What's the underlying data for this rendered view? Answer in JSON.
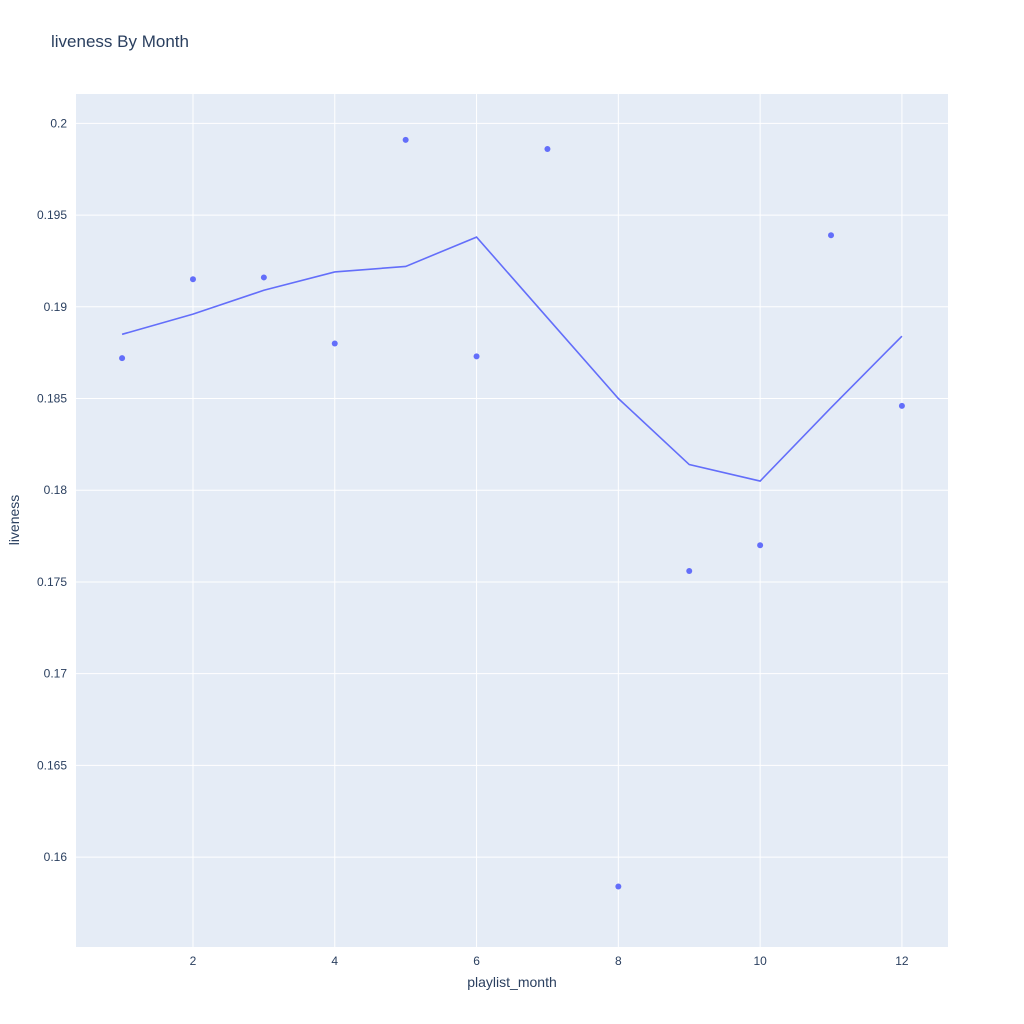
{
  "chart_data": {
    "type": "scatter",
    "title": "liveness By Month",
    "xlabel": "playlist_month",
    "ylabel": "liveness",
    "xlim": [
      0.35,
      12.65
    ],
    "ylim": [
      0.1551,
      0.2016
    ],
    "x_ticks": [
      2,
      4,
      6,
      8,
      10,
      12
    ],
    "y_ticks": [
      0.16,
      0.165,
      0.17,
      0.175,
      0.18,
      0.185,
      0.19,
      0.195,
      0.2
    ],
    "grid": true,
    "colors": {
      "plot_bg": "#e5ecf6",
      "grid": "#ffffff",
      "series": "#636efa",
      "text": "#2a3f5f"
    },
    "series": [
      {
        "mode": "markers",
        "x": [
          1,
          2,
          3,
          4,
          5,
          6,
          7,
          8,
          9,
          10,
          11,
          12
        ],
        "y": [
          0.1872,
          0.1915,
          0.1916,
          0.188,
          0.1991,
          0.1873,
          0.1986,
          0.1584,
          0.1756,
          0.177,
          0.1939,
          0.1846
        ]
      },
      {
        "mode": "lines",
        "x": [
          1,
          2,
          3,
          4,
          5,
          6,
          7,
          8,
          9,
          10,
          11,
          12
        ],
        "y": [
          0.1885,
          0.1896,
          0.1909,
          0.1919,
          0.1922,
          0.1938,
          0.1894,
          0.185,
          0.1814,
          0.1805,
          0.1845,
          0.1884
        ]
      }
    ]
  }
}
